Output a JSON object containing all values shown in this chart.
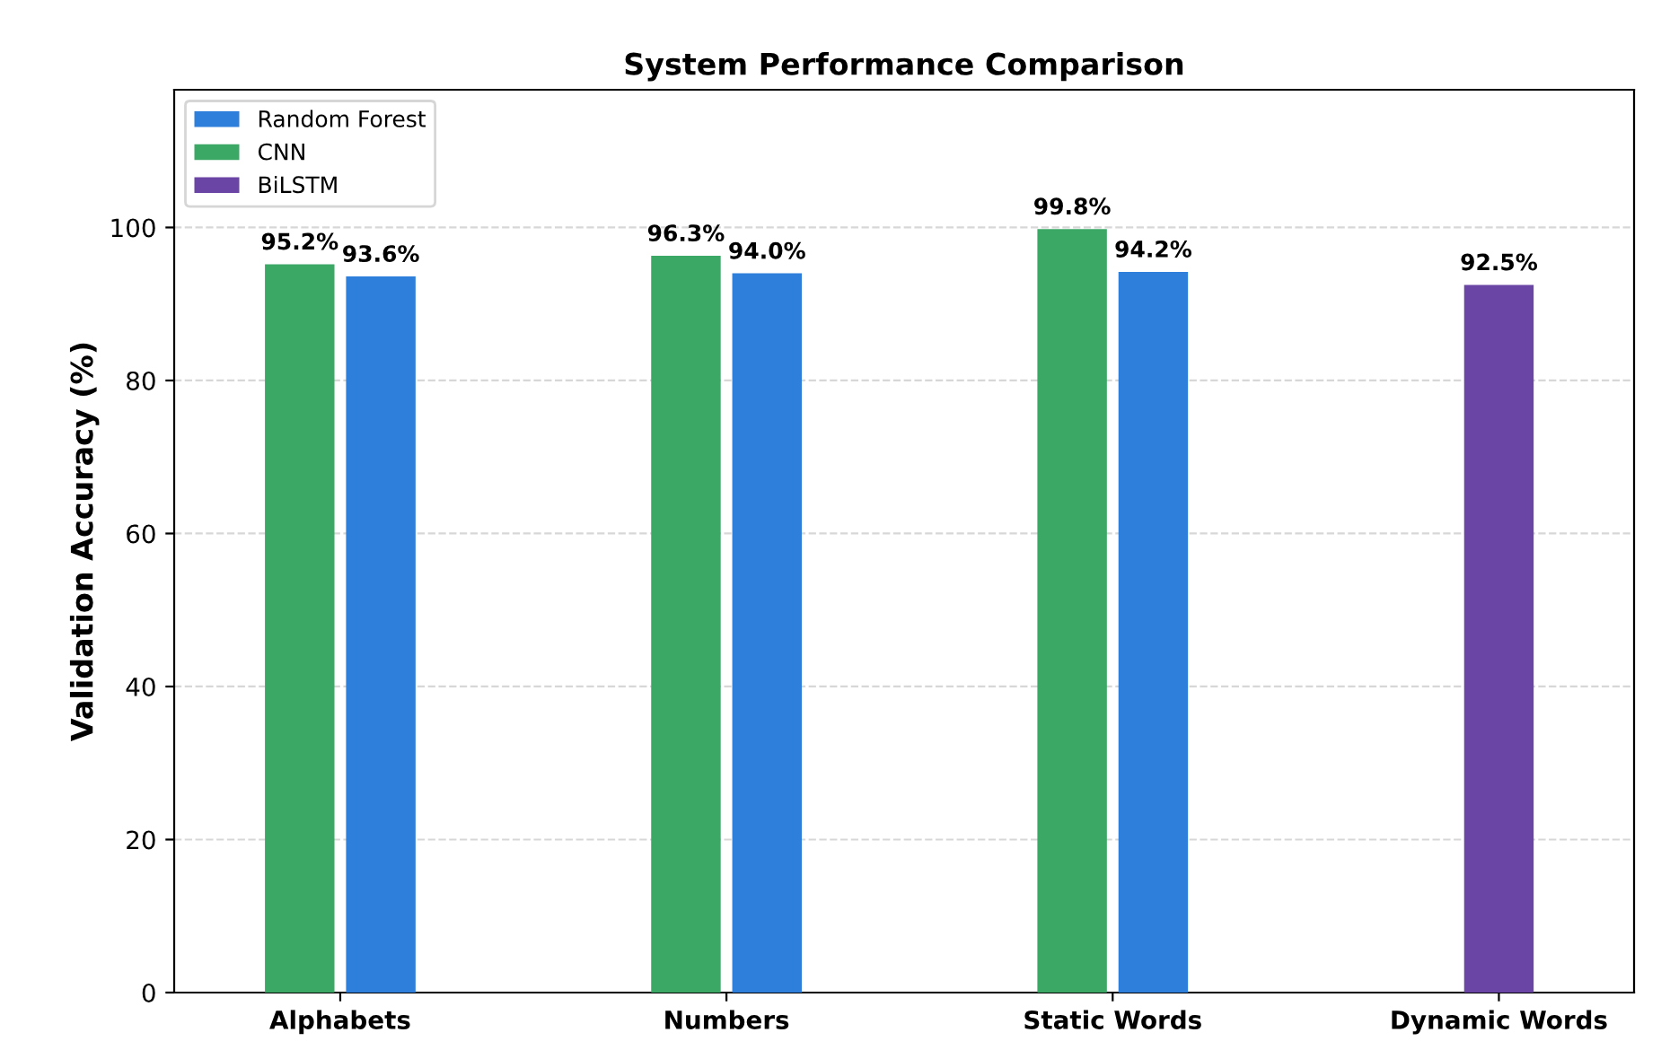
{
  "chart_data": {
    "type": "bar",
    "title": "System Performance Comparison",
    "ylabel": "Validation Accuracy (%)",
    "categories": [
      "Alphabets",
      "Numbers",
      "Static Words",
      "Dynamic Words"
    ],
    "series": [
      {
        "name": "Random Forest",
        "color": "#2e7fdc",
        "values": [
          93.6,
          94.0,
          94.2,
          null
        ]
      },
      {
        "name": "CNN",
        "color": "#3ca866",
        "values": [
          95.2,
          96.3,
          99.8,
          null
        ]
      },
      {
        "name": "BiLSTM",
        "color": "#6a45a6",
        "values": [
          null,
          null,
          null,
          92.5
        ]
      }
    ],
    "value_labels": [
      [
        "93.6%",
        "94.0%",
        "94.2%",
        null
      ],
      [
        "95.2%",
        "96.3%",
        "99.8%",
        null
      ],
      [
        null,
        null,
        null,
        "92.5%"
      ]
    ],
    "ylim": [
      0,
      118
    ],
    "yticks": [
      0,
      20,
      40,
      60,
      80,
      100
    ],
    "grid": "y",
    "legend": "top left"
  }
}
